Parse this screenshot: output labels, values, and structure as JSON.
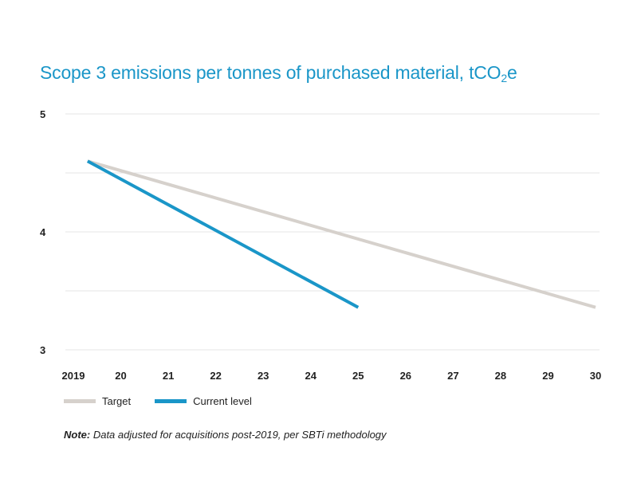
{
  "chart_data": {
    "type": "line",
    "title_main": "Scope 3 emissions per tonnes of purchased material, tCO",
    "title_sub": "2",
    "title_tail": "e",
    "x": [
      2019.3,
      2025,
      2030
    ],
    "x_ticks": [
      "2019",
      "20",
      "21",
      "22",
      "23",
      "24",
      "25",
      "26",
      "27",
      "28",
      "29",
      "30"
    ],
    "x_tick_values": [
      2019,
      2020,
      2021,
      2022,
      2023,
      2024,
      2025,
      2026,
      2027,
      2028,
      2029,
      2030
    ],
    "y_ticks": [
      "5",
      "4",
      "3"
    ],
    "y_tick_values": [
      5,
      4,
      3
    ],
    "ylim": [
      3,
      5
    ],
    "xlim": [
      2019,
      2030
    ],
    "grid": true,
    "series": [
      {
        "name": "Target",
        "color": "#d6d1cc",
        "points": [
          [
            2019.3,
            4.6
          ],
          [
            2030,
            3.36
          ]
        ]
      },
      {
        "name": "Current level",
        "color": "#1a96c8",
        "points": [
          [
            2019.3,
            4.6
          ],
          [
            2025,
            3.36
          ]
        ]
      }
    ],
    "legend_position": "bottom-left"
  },
  "note": {
    "label": "Note:",
    "text": " Data adjusted for acquisitions post-2019, per SBTi methodology"
  }
}
